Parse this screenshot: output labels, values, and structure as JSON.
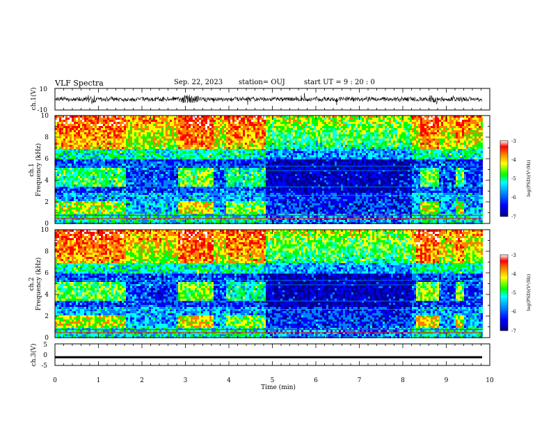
{
  "header": {
    "title": "VLF Spectra",
    "date": "Sep. 22, 2023",
    "station": "station= OUJ",
    "start": "start  UT =   9 : 20 : 0"
  },
  "colors": {
    "scale": [
      "#00008b",
      "#0000ff",
      "#0080ff",
      "#00ffff",
      "#00ff00",
      "#ffff00",
      "#ff8000",
      "#ff0000",
      "#ffffff"
    ]
  },
  "chart_data": [
    {
      "id": "ch1-waveform",
      "type": "line",
      "ylabel": "ch.1(V)",
      "ylim": [
        -10,
        10
      ],
      "yticks": [
        "10",
        "-10"
      ],
      "xlim": [
        0,
        10
      ],
      "series": [
        {
          "values": []
        }
      ]
    },
    {
      "id": "ch1-spectrogram",
      "type": "heatmap",
      "ylabel": "ch.1\nFrequency (kHz)",
      "ylim": [
        0,
        10
      ],
      "yticks": [
        "0",
        "2",
        "4",
        "6",
        "8",
        "10"
      ],
      "xlim": [
        0,
        10
      ],
      "colorbar": {
        "label": "log(PSD)(V²/Hz)",
        "range": [
          -7,
          -3
        ],
        "ticks": [
          "-3",
          "-4",
          "-5",
          "-6",
          "-7"
        ]
      },
      "activity": [
        {
          "start": 0.0,
          "end": 1.6,
          "level": 0.7
        },
        {
          "start": 2.8,
          "end": 3.6,
          "level": 0.9
        },
        {
          "start": 3.9,
          "end": 4.8,
          "level": 0.6
        },
        {
          "start": 8.4,
          "end": 8.8,
          "level": 0.8
        },
        {
          "start": 9.2,
          "end": 9.4,
          "level": 0.7
        }
      ]
    },
    {
      "id": "ch2-spectrogram",
      "type": "heatmap",
      "ylabel": "ch.2\nFrequency (kHz)",
      "ylim": [
        0,
        10
      ],
      "yticks": [
        "0",
        "2",
        "4",
        "6",
        "8",
        "10"
      ],
      "xlim": [
        0,
        10
      ],
      "colorbar": {
        "label": "log(PSD)(V²/Hz)",
        "range": [
          -7,
          -3
        ],
        "ticks": [
          "-3",
          "-4",
          "-5",
          "-6",
          "-7"
        ]
      },
      "activity": [
        {
          "start": 0.0,
          "end": 1.6,
          "level": 0.8
        },
        {
          "start": 2.8,
          "end": 3.6,
          "level": 0.9
        },
        {
          "start": 3.9,
          "end": 4.8,
          "level": 0.6
        },
        {
          "start": 8.3,
          "end": 8.8,
          "level": 0.9
        },
        {
          "start": 9.2,
          "end": 9.4,
          "level": 0.8
        }
      ]
    },
    {
      "id": "ch3-waveform",
      "type": "line",
      "ylabel": "ch.3(V)",
      "ylim": [
        -5,
        5
      ],
      "yticks": [
        "5",
        "0",
        "-5"
      ],
      "xlim": [
        0,
        10
      ],
      "series": [
        {
          "values": [
            -1.2
          ]
        }
      ]
    }
  ],
  "xaxis": {
    "label": "Time (min)",
    "ticks": [
      "0",
      "1",
      "2",
      "3",
      "4",
      "5",
      "6",
      "7",
      "8",
      "9",
      "10"
    ]
  }
}
